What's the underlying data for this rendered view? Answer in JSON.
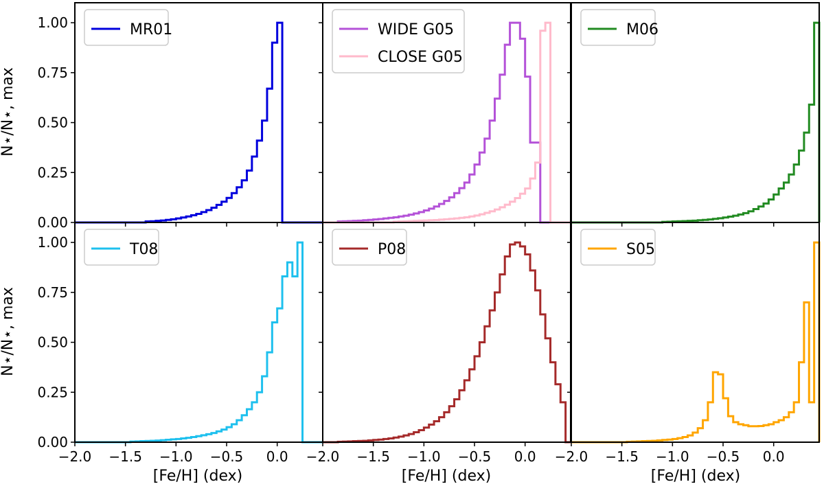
{
  "chart_data": {
    "type": "line",
    "ylabel": "N⋆/N⋆, max",
    "xlabel": "[Fe/H]   (dex)",
    "xlim": [
      -2.0,
      0.45
    ],
    "ylim": [
      0,
      1.1
    ],
    "x_ticks": [
      -2.0,
      -1.5,
      -1.0,
      -0.5,
      0.0
    ],
    "x_tick_labels": [
      "−2.0",
      "−1.5",
      "−1.0",
      "−0.5",
      "0.0"
    ],
    "y_ticks": [
      0,
      0.25,
      0.5,
      0.75,
      1.0
    ],
    "y_tick_labels": [
      "0.00",
      "0.25",
      "0.50",
      "0.75",
      "1.00"
    ],
    "panels": [
      {
        "id": "mr01",
        "series": [
          {
            "name": "MR01",
            "color": "#0000dd",
            "edges": [
              -2.0,
              -1.95,
              -1.9,
              -1.85,
              -1.8,
              -1.75,
              -1.7,
              -1.65,
              -1.6,
              -1.55,
              -1.5,
              -1.45,
              -1.4,
              -1.35,
              -1.3,
              -1.25,
              -1.2,
              -1.15,
              -1.1,
              -1.05,
              -1.0,
              -0.95,
              -0.9,
              -0.85,
              -0.8,
              -0.75,
              -0.7,
              -0.65,
              -0.6,
              -0.55,
              -0.5,
              -0.45,
              -0.4,
              -0.35,
              -0.3,
              -0.25,
              -0.2,
              -0.15,
              -0.1,
              -0.05,
              0.0,
              0.05,
              0.1,
              0.15,
              0.2,
              0.25,
              0.3,
              0.35,
              0.4,
              0.45
            ],
            "values": [
              0,
              0,
              0,
              0,
              0,
              0,
              0,
              0,
              0,
              0,
              0,
              0,
              0,
              0,
              0.005,
              0.006,
              0.008,
              0.01,
              0.013,
              0.016,
              0.02,
              0.025,
              0.03,
              0.036,
              0.043,
              0.052,
              0.062,
              0.074,
              0.088,
              0.104,
              0.123,
              0.147,
              0.176,
              0.211,
              0.26,
              0.33,
              0.41,
              0.51,
              0.67,
              0.9,
              1.0,
              0,
              0,
              0,
              0,
              0,
              0,
              0,
              0,
              0
            ]
          }
        ]
      },
      {
        "id": "g05",
        "series": [
          {
            "name": "WIDE G05",
            "color": "#b452d8",
            "edges": [
              -2.0,
              -1.95,
              -1.9,
              -1.85,
              -1.8,
              -1.75,
              -1.7,
              -1.65,
              -1.6,
              -1.55,
              -1.5,
              -1.45,
              -1.4,
              -1.35,
              -1.3,
              -1.25,
              -1.2,
              -1.15,
              -1.1,
              -1.05,
              -1.0,
              -0.95,
              -0.9,
              -0.85,
              -0.8,
              -0.75,
              -0.7,
              -0.65,
              -0.6,
              -0.55,
              -0.5,
              -0.45,
              -0.4,
              -0.35,
              -0.3,
              -0.25,
              -0.2,
              -0.15,
              -0.1,
              -0.05,
              0.0,
              0.05,
              0.1,
              0.15,
              0.2,
              0.25,
              0.3,
              0.35,
              0.4,
              0.45
            ],
            "values": [
              0,
              0,
              0,
              0.005,
              0.006,
              0.007,
              0.008,
              0.009,
              0.011,
              0.013,
              0.015,
              0.017,
              0.02,
              0.023,
              0.026,
              0.03,
              0.034,
              0.039,
              0.045,
              0.052,
              0.06,
              0.069,
              0.08,
              0.093,
              0.108,
              0.126,
              0.147,
              0.172,
              0.2,
              0.24,
              0.29,
              0.35,
              0.42,
              0.51,
              0.62,
              0.74,
              0.89,
              1.0,
              1.0,
              0.92,
              0.73,
              0.4,
              0.4,
              0,
              0,
              0,
              0,
              0,
              0,
              0
            ]
          },
          {
            "name": "CLOSE G05",
            "color": "#ffbacb",
            "edges": [
              -2.0,
              -1.95,
              -1.9,
              -1.85,
              -1.8,
              -1.75,
              -1.7,
              -1.65,
              -1.6,
              -1.55,
              -1.5,
              -1.45,
              -1.4,
              -1.35,
              -1.3,
              -1.25,
              -1.2,
              -1.15,
              -1.1,
              -1.05,
              -1.0,
              -0.95,
              -0.9,
              -0.85,
              -0.8,
              -0.75,
              -0.7,
              -0.65,
              -0.6,
              -0.55,
              -0.5,
              -0.45,
              -0.4,
              -0.35,
              -0.3,
              -0.25,
              -0.2,
              -0.15,
              -0.1,
              -0.05,
              0.0,
              0.05,
              0.1,
              0.15,
              0.2,
              0.25,
              0.3,
              0.35,
              0.4,
              0.45
            ],
            "values": [
              0,
              0,
              0,
              0,
              0,
              0,
              0,
              0,
              0,
              0,
              0,
              0,
              0,
              0,
              0.004,
              0.005,
              0.006,
              0.007,
              0.008,
              0.009,
              0.01,
              0.011,
              0.012,
              0.014,
              0.016,
              0.018,
              0.02,
              0.023,
              0.026,
              0.03,
              0.035,
              0.041,
              0.048,
              0.056,
              0.065,
              0.076,
              0.089,
              0.104,
              0.122,
              0.144,
              0.17,
              0.22,
              0.3,
              0.96,
              1.0,
              0,
              0,
              0,
              0,
              0
            ]
          }
        ]
      },
      {
        "id": "m06",
        "series": [
          {
            "name": "M06",
            "color": "#228b22",
            "edges": [
              -2.0,
              -1.95,
              -1.9,
              -1.85,
              -1.8,
              -1.75,
              -1.7,
              -1.65,
              -1.6,
              -1.55,
              -1.5,
              -1.45,
              -1.4,
              -1.35,
              -1.3,
              -1.25,
              -1.2,
              -1.15,
              -1.1,
              -1.05,
              -1.0,
              -0.95,
              -0.9,
              -0.85,
              -0.8,
              -0.75,
              -0.7,
              -0.65,
              -0.6,
              -0.55,
              -0.5,
              -0.45,
              -0.4,
              -0.35,
              -0.3,
              -0.25,
              -0.2,
              -0.15,
              -0.1,
              -0.05,
              0.0,
              0.05,
              0.1,
              0.15,
              0.2,
              0.25,
              0.3,
              0.35,
              0.4,
              0.45
            ],
            "values": [
              0,
              0,
              0,
              0,
              0,
              0,
              0,
              0,
              0,
              0,
              0,
              0,
              0,
              0,
              0,
              0,
              0,
              0,
              0.003,
              0.004,
              0.005,
              0.006,
              0.007,
              0.008,
              0.009,
              0.011,
              0.013,
              0.015,
              0.018,
              0.021,
              0.025,
              0.029,
              0.034,
              0.04,
              0.047,
              0.056,
              0.067,
              0.08,
              0.095,
              0.115,
              0.14,
              0.17,
              0.2,
              0.24,
              0.29,
              0.36,
              0.45,
              0.59,
              1.0,
              0
            ]
          }
        ]
      },
      {
        "id": "t08",
        "series": [
          {
            "name": "T08",
            "color": "#1ec0ee",
            "edges": [
              -2.0,
              -1.95,
              -1.9,
              -1.85,
              -1.8,
              -1.75,
              -1.7,
              -1.65,
              -1.6,
              -1.55,
              -1.5,
              -1.45,
              -1.4,
              -1.35,
              -1.3,
              -1.25,
              -1.2,
              -1.15,
              -1.1,
              -1.05,
              -1.0,
              -0.95,
              -0.9,
              -0.85,
              -0.8,
              -0.75,
              -0.7,
              -0.65,
              -0.6,
              -0.55,
              -0.5,
              -0.45,
              -0.4,
              -0.35,
              -0.3,
              -0.25,
              -0.2,
              -0.15,
              -0.1,
              -0.05,
              0.0,
              0.05,
              0.1,
              0.15,
              0.2,
              0.25,
              0.3,
              0.35,
              0.4,
              0.45
            ],
            "values": [
              0,
              0,
              0,
              0,
              0,
              0,
              0,
              0,
              0,
              0,
              0,
              0.003,
              0.004,
              0.005,
              0.006,
              0.007,
              0.008,
              0.01,
              0.012,
              0.014,
              0.016,
              0.019,
              0.022,
              0.026,
              0.03,
              0.035,
              0.04,
              0.046,
              0.054,
              0.063,
              0.075,
              0.09,
              0.11,
              0.135,
              0.165,
              0.2,
              0.25,
              0.33,
              0.45,
              0.6,
              0.67,
              0.83,
              0.9,
              0.83,
              1.0,
              0,
              0,
              0,
              0,
              0
            ]
          }
        ]
      },
      {
        "id": "p08",
        "series": [
          {
            "name": "P08",
            "color": "#a52a2a",
            "edges": [
              -2.0,
              -1.95,
              -1.9,
              -1.85,
              -1.8,
              -1.75,
              -1.7,
              -1.65,
              -1.6,
              -1.55,
              -1.5,
              -1.45,
              -1.4,
              -1.35,
              -1.3,
              -1.25,
              -1.2,
              -1.15,
              -1.1,
              -1.05,
              -1.0,
              -0.95,
              -0.9,
              -0.85,
              -0.8,
              -0.75,
              -0.7,
              -0.65,
              -0.6,
              -0.55,
              -0.5,
              -0.45,
              -0.4,
              -0.35,
              -0.3,
              -0.25,
              -0.2,
              -0.15,
              -0.1,
              -0.05,
              0.0,
              0.05,
              0.1,
              0.15,
              0.2,
              0.25,
              0.3,
              0.35,
              0.4,
              0.45
            ],
            "values": [
              0,
              0,
              0,
              0.002,
              0.003,
              0.004,
              0.005,
              0.006,
              0.007,
              0.009,
              0.011,
              0.013,
              0.016,
              0.019,
              0.023,
              0.028,
              0.034,
              0.041,
              0.05,
              0.06,
              0.073,
              0.088,
              0.105,
              0.125,
              0.15,
              0.18,
              0.215,
              0.26,
              0.31,
              0.365,
              0.43,
              0.5,
              0.58,
              0.66,
              0.75,
              0.84,
              0.93,
              0.99,
              1.0,
              0.98,
              0.94,
              0.86,
              0.76,
              0.64,
              0.52,
              0.4,
              0.29,
              0.2,
              0,
              0
            ]
          }
        ]
      },
      {
        "id": "s05",
        "series": [
          {
            "name": "S05",
            "color": "#ffa500",
            "edges": [
              -2.0,
              -1.95,
              -1.9,
              -1.85,
              -1.8,
              -1.75,
              -1.7,
              -1.65,
              -1.6,
              -1.55,
              -1.5,
              -1.45,
              -1.4,
              -1.35,
              -1.3,
              -1.25,
              -1.2,
              -1.15,
              -1.1,
              -1.05,
              -1.0,
              -0.95,
              -0.9,
              -0.85,
              -0.8,
              -0.75,
              -0.7,
              -0.65,
              -0.6,
              -0.55,
              -0.5,
              -0.45,
              -0.4,
              -0.35,
              -0.3,
              -0.25,
              -0.2,
              -0.15,
              -0.1,
              -0.05,
              0.0,
              0.05,
              0.1,
              0.15,
              0.2,
              0.25,
              0.3,
              0.35,
              0.4,
              0.45
            ],
            "values": [
              0,
              0,
              0,
              0,
              0,
              0,
              0,
              0,
              0,
              0,
              0,
              0.002,
              0.003,
              0.004,
              0.005,
              0.006,
              0.007,
              0.009,
              0.011,
              0.013,
              0.016,
              0.02,
              0.026,
              0.034,
              0.048,
              0.07,
              0.11,
              0.2,
              0.35,
              0.34,
              0.22,
              0.13,
              0.1,
              0.09,
              0.085,
              0.08,
              0.08,
              0.081,
              0.085,
              0.09,
              0.1,
              0.11,
              0.125,
              0.15,
              0.2,
              0.4,
              0.7,
              0.2,
              1.0,
              0
            ]
          }
        ]
      }
    ]
  }
}
